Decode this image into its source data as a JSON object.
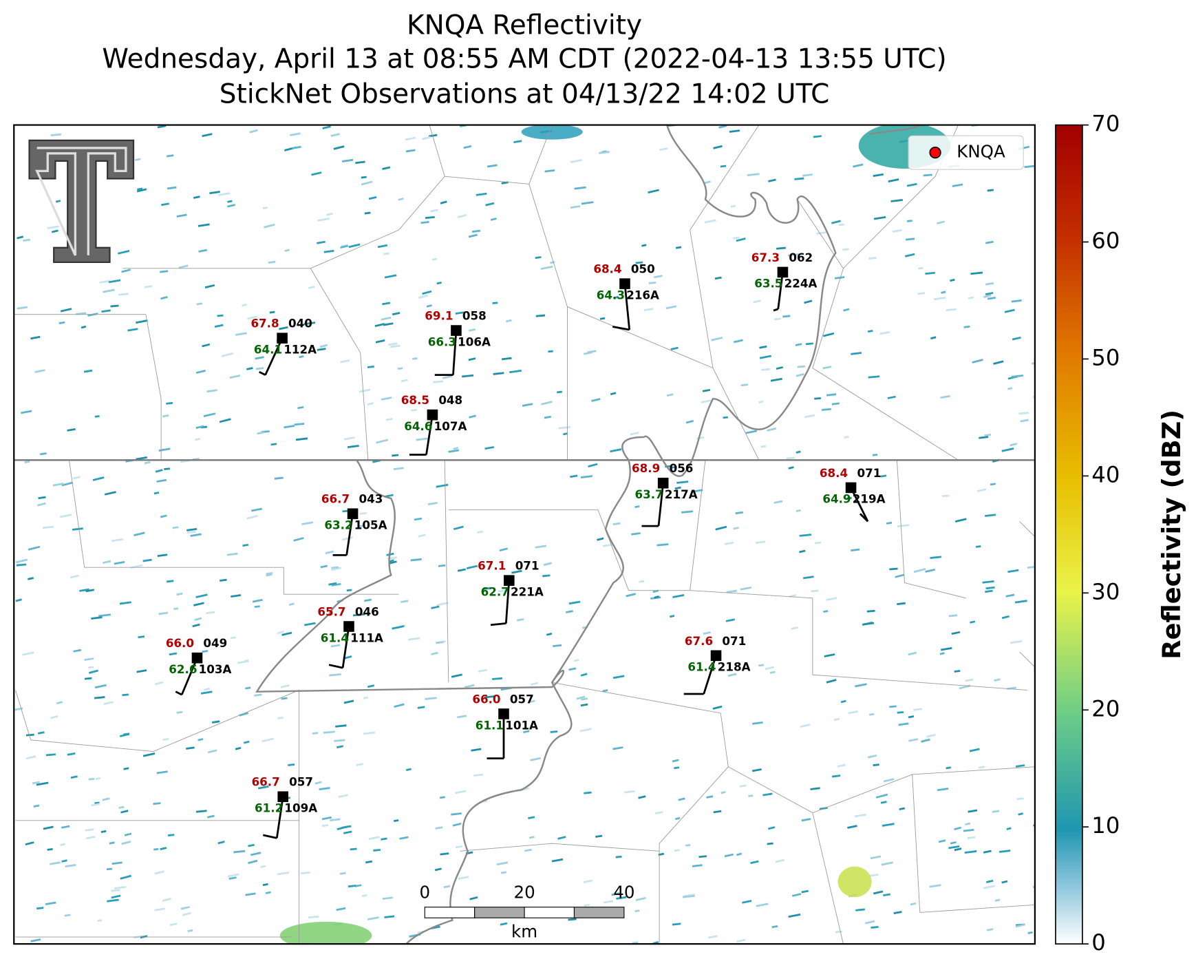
{
  "header": {
    "title": "KNQA Reflectivity",
    "subtitle": "Wednesday, April 13 at 08:55 AM CDT (2022-04-13 13:55 UTC)",
    "subtitle2": "StickNet Observations at 04/13/22 14:02 UTC"
  },
  "legend": {
    "label": "KNQA"
  },
  "colorbar": {
    "label": "Reflectivity (dBZ)",
    "lim": [
      0,
      70
    ],
    "ticks": [
      0,
      10,
      20,
      30,
      40,
      50,
      60,
      70
    ]
  },
  "scale_bar": {
    "ticks": [
      0,
      20,
      40
    ],
    "unit": "km"
  },
  "stations": [
    {
      "id": "112A",
      "temp": "67.8",
      "dew": "64.1",
      "pressure": "040"
    },
    {
      "id": "106A",
      "temp": "69.1",
      "dew": "66.3",
      "pressure": "058"
    },
    {
      "id": "107A",
      "temp": "68.5",
      "dew": "64.6",
      "pressure": "048"
    },
    {
      "id": "216A",
      "temp": "68.4",
      "dew": "64.3",
      "pressure": "050"
    },
    {
      "id": "224A",
      "temp": "67.3",
      "dew": "63.5",
      "pressure": "062"
    },
    {
      "id": "217A",
      "temp": "68.9",
      "dew": "63.7",
      "pressure": "056"
    },
    {
      "id": "219A",
      "temp": "68.4",
      "dew": "64.9",
      "pressure": "071"
    },
    {
      "id": "105A",
      "temp": "66.7",
      "dew": "63.2",
      "pressure": "043"
    },
    {
      "id": "221A",
      "temp": "67.1",
      "dew": "62.7",
      "pressure": "071"
    },
    {
      "id": "111A",
      "temp": "65.7",
      "dew": "61.4",
      "pressure": "046"
    },
    {
      "id": "103A",
      "temp": "66.0",
      "dew": "62.6",
      "pressure": "049"
    },
    {
      "id": "218A",
      "temp": "67.6",
      "dew": "61.4",
      "pressure": "071"
    },
    {
      "id": "101A",
      "temp": "66.0",
      "dew": "61.1",
      "pressure": "057"
    },
    {
      "id": "109A",
      "temp": "66.7",
      "dew": "61.2",
      "pressure": "057"
    }
  ]
}
